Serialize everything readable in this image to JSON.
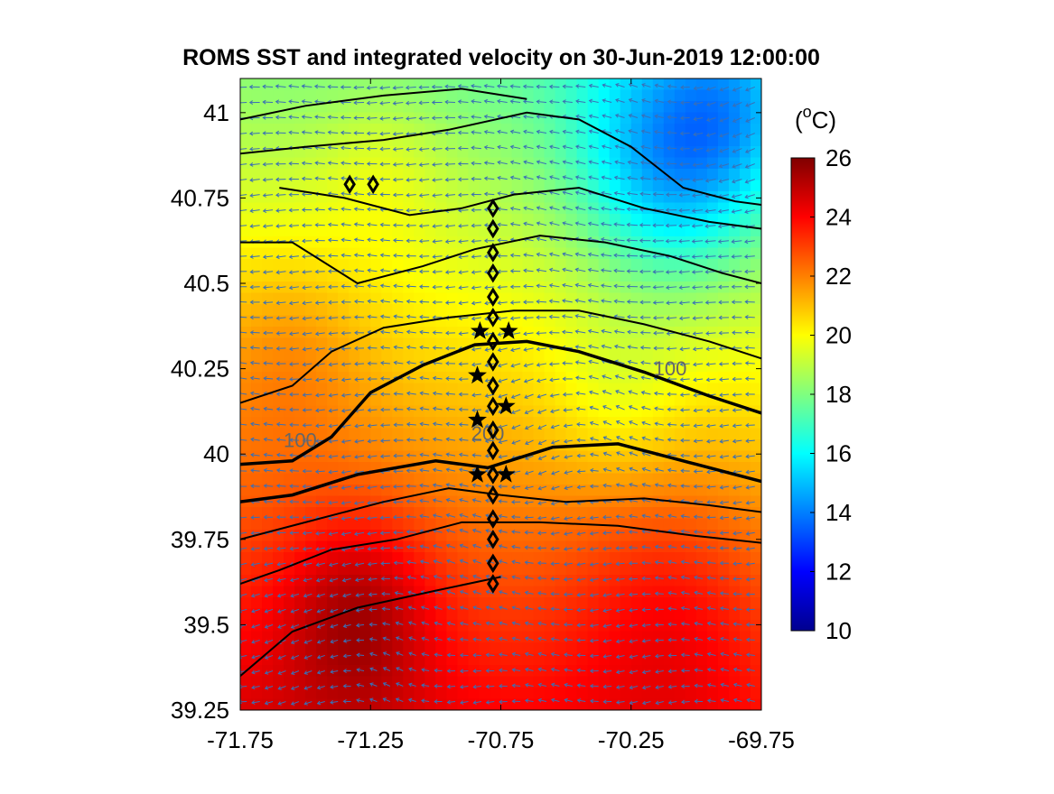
{
  "chart_data": {
    "type": "heatmap",
    "title": "ROMS SST and integrated velocity on 30-Jun-2019 12:00:00",
    "xlim": [
      -71.75,
      -69.75
    ],
    "ylim": [
      39.25,
      41.1
    ],
    "x_ticks": [
      "-71.75",
      "-71.25",
      "-70.75",
      "-70.25",
      "-69.75"
    ],
    "y_ticks": [
      "39.25",
      "39.5",
      "39.75",
      "40",
      "40.25",
      "40.5",
      "40.75",
      "41"
    ],
    "colorbar": {
      "label_base": "(",
      "label_sup": "o",
      "label_rest": "C)",
      "range": [
        10,
        26
      ],
      "ticks": [
        "10",
        "12",
        "14",
        "16",
        "18",
        "20",
        "22",
        "24",
        "26"
      ],
      "colormap": "jet"
    },
    "contour_labels": [
      {
        "text": "100",
        "lon": -71.52,
        "lat": 40.02
      },
      {
        "text": "200",
        "lon": -70.8,
        "lat": 40.04
      },
      {
        "text": "100",
        "lon": -70.1,
        "lat": 40.23
      }
    ],
    "station_diamonds": [
      {
        "lon": -70.78,
        "lat": 40.72
      },
      {
        "lon": -70.78,
        "lat": 40.66
      },
      {
        "lon": -70.78,
        "lat": 40.59
      },
      {
        "lon": -70.78,
        "lat": 40.53
      },
      {
        "lon": -70.78,
        "lat": 40.46
      },
      {
        "lon": -70.78,
        "lat": 40.4
      },
      {
        "lon": -70.78,
        "lat": 40.33
      },
      {
        "lon": -70.78,
        "lat": 40.27
      },
      {
        "lon": -70.78,
        "lat": 40.2
      },
      {
        "lon": -70.78,
        "lat": 40.14
      },
      {
        "lon": -70.78,
        "lat": 40.07
      },
      {
        "lon": -70.78,
        "lat": 40.01
      },
      {
        "lon": -70.78,
        "lat": 39.94
      },
      {
        "lon": -70.78,
        "lat": 39.88
      },
      {
        "lon": -70.78,
        "lat": 39.81
      },
      {
        "lon": -70.78,
        "lat": 39.75
      },
      {
        "lon": -70.78,
        "lat": 39.68
      },
      {
        "lon": -70.78,
        "lat": 39.62
      },
      {
        "lon": -71.33,
        "lat": 40.79
      },
      {
        "lon": -71.24,
        "lat": 40.79
      }
    ],
    "station_stars": [
      {
        "lon": -70.83,
        "lat": 40.36
      },
      {
        "lon": -70.72,
        "lat": 40.36
      },
      {
        "lon": -70.84,
        "lat": 40.23
      },
      {
        "lon": -70.73,
        "lat": 40.14
      },
      {
        "lon": -70.84,
        "lat": 40.1
      },
      {
        "lon": -70.84,
        "lat": 39.94
      },
      {
        "lon": -70.73,
        "lat": 39.94
      }
    ]
  }
}
